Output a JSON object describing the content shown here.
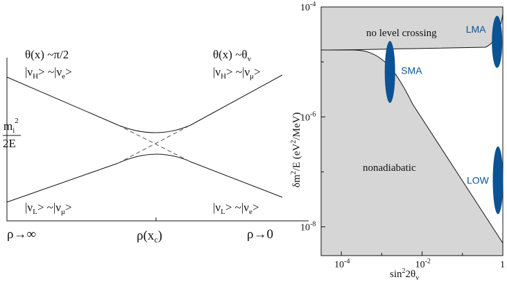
{
  "chart_data": [
    {
      "type": "line",
      "title": "",
      "description_labels": {
        "ylabel_top": "m",
        "ylabel_top_sub": "i",
        "ylabel_top_sup": "2",
        "ylabel_bottom": "2E",
        "top_left_line1": "θ(x) ~π/2",
        "top_left_line2": "|ν",
        "top_left_line2_sub": "H",
        "top_left_line2_rest": "> ~|ν",
        "top_left_line2_sub2": "e",
        "top_left_line2_end": ">",
        "top_right_line1": "θ(x) ~θ",
        "top_right_line1_sub": "v",
        "top_right_line2": "|ν",
        "top_right_line2_sub": "H",
        "top_right_line2_rest": "> ~|ν",
        "top_right_line2_sub2": "μ",
        "top_right_line2_end": ">",
        "bottom_left_line": "|ν",
        "bottom_left_line_sub": "L",
        "bottom_left_line_rest": "> ~|ν",
        "bottom_left_line_sub2": "μ",
        "bottom_left_line_end": ">",
        "bottom_right_line": "|ν",
        "bottom_right_line_sub": "L",
        "bottom_right_line_rest": "> ~|ν",
        "bottom_right_line_sub2": "e",
        "bottom_right_line_end": ">"
      },
      "x_ticks": {
        "left": "ρ→∞",
        "center": "ρ(x",
        "center_sub": "c",
        "center_end": ")",
        "right": "ρ→0"
      },
      "x": [
        0,
        0.25,
        0.5,
        0.75,
        1
      ],
      "series": [
        {
          "values": [
            0.88,
            0.56,
            0.37,
            0.56,
            0.95
          ]
        },
        {
          "values": [
            0.1,
            0.36,
            0.53,
            0.36,
            0.15
          ]
        }
      ],
      "crossing_lines": "dashed",
      "grid": false
    },
    {
      "type": "area",
      "xlabel": "sin",
      "xlabel_sup": "2",
      "xlabel_rest": "2θ",
      "xlabel_sub": "v",
      "ylabel": "δm",
      "ylabel_sup": "2",
      "ylabel_mid": "/E (eV",
      "ylabel_sup2": "2",
      "ylabel_end": "/MeV)",
      "xscale": "log",
      "yscale": "log",
      "xlim": [
        3.16e-05,
        1
      ],
      "ylim": [
        3e-09,
        0.0001
      ],
      "x_ticks": [
        {
          "value": 0.0001,
          "base": "10",
          "exp": "-4"
        },
        {
          "value": 0.01,
          "base": "10",
          "exp": "-2"
        },
        {
          "value": 1,
          "label": "1"
        }
      ],
      "y_ticks": [
        {
          "value": 0.0001,
          "base": "10",
          "exp": "-4"
        },
        {
          "value": 1e-06,
          "base": "10",
          "exp": "-6"
        },
        {
          "value": 1e-08,
          "base": "10",
          "exp": "-8"
        }
      ],
      "region_labels": {
        "top": "no level crossing",
        "bottom": "nonadiabatic"
      },
      "solutions": [
        {
          "name": "SMA",
          "x": 0.0016,
          "y_range": [
            1.8e-06,
            2.4e-05
          ],
          "color": "#0b5394"
        },
        {
          "name": "LMA",
          "x": 0.72,
          "y_range": [
            7.8e-06,
            6.9e-05
          ],
          "color": "#0b5394"
        },
        {
          "name": "LOW",
          "x": 0.95,
          "y_range": [
            1.7e-08,
            2.9e-07
          ],
          "color": "#0b5394"
        }
      ],
      "fill_color": "#d6d6d6",
      "grid": false
    }
  ]
}
